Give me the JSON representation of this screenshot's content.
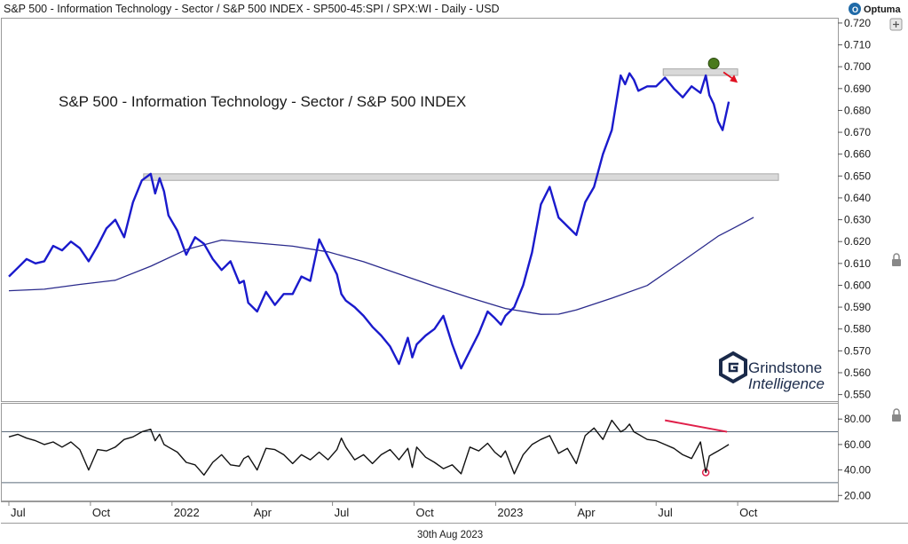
{
  "header": {
    "title": "S&P 500 - Information Technology - Sector / S&P 500 INDEX - SP500-45:SPI / SPX:WI - Daily - USD",
    "brand": "Optuma"
  },
  "watermark": {
    "line1": "Grindstone",
    "line2": "Intelligence"
  },
  "footer": {
    "date": "30th Aug 2023"
  },
  "colors": {
    "price": "#1a1acc",
    "ma": "#2a2a8c",
    "rsi": "#111111",
    "resistance": "#d9d9d9",
    "marker": "#4a7a1c",
    "arrow": "#e01020",
    "divergence": "#e0204a"
  },
  "chart_data": [
    {
      "type": "line",
      "title": "S&P 500 - Information Technology - Sector / S&P 500 INDEX",
      "xlabel": "",
      "ylabel": "",
      "ylim": [
        0.547,
        0.722
      ],
      "y_ticks": [
        "0.720",
        "0.710",
        "0.700",
        "0.690",
        "0.680",
        "0.670",
        "0.660",
        "0.650",
        "0.640",
        "0.630",
        "0.620",
        "0.610",
        "0.600",
        "0.590",
        "0.580",
        "0.570",
        "0.560",
        "0.550"
      ],
      "x_tick_labels": [
        "Jul",
        "Oct",
        "2022",
        "Apr",
        "Jul",
        "Oct",
        "2023",
        "Apr",
        "Jul",
        "Oct"
      ],
      "x_tick_positions": [
        0,
        92,
        184,
        274,
        365,
        457,
        549,
        639,
        730,
        822
      ],
      "x_range": [
        -8,
        935
      ],
      "series": [
        {
          "name": "Ratio",
          "x": [
            0,
            10,
            20,
            30,
            40,
            50,
            60,
            70,
            80,
            90,
            100,
            110,
            120,
            130,
            140,
            150,
            160,
            165,
            170,
            175,
            180,
            190,
            200,
            210,
            220,
            230,
            240,
            250,
            260,
            265,
            270,
            280,
            290,
            300,
            310,
            320,
            330,
            340,
            350,
            360,
            370,
            375,
            380,
            390,
            400,
            410,
            420,
            430,
            440,
            450,
            455,
            460,
            470,
            480,
            490,
            500,
            510,
            520,
            530,
            540,
            548,
            555,
            560,
            570,
            580,
            590,
            600,
            610,
            620,
            630,
            640,
            650,
            660,
            670,
            680,
            690,
            695,
            700,
            705,
            710,
            715,
            720,
            730,
            740,
            750,
            760,
            770,
            780,
            786,
            790,
            795,
            800,
            805,
            812
          ],
          "values": [
            0.604,
            0.608,
            0.612,
            0.61,
            0.611,
            0.618,
            0.616,
            0.62,
            0.617,
            0.611,
            0.618,
            0.626,
            0.63,
            0.622,
            0.638,
            0.648,
            0.651,
            0.642,
            0.649,
            0.643,
            0.632,
            0.625,
            0.614,
            0.622,
            0.619,
            0.612,
            0.607,
            0.611,
            0.601,
            0.602,
            0.592,
            0.588,
            0.597,
            0.591,
            0.596,
            0.596,
            0.604,
            0.602,
            0.621,
            0.613,
            0.605,
            0.596,
            0.593,
            0.59,
            0.586,
            0.581,
            0.577,
            0.572,
            0.564,
            0.576,
            0.567,
            0.573,
            0.577,
            0.58,
            0.586,
            0.573,
            0.562,
            0.57,
            0.578,
            0.588,
            0.585,
            0.582,
            0.586,
            0.59,
            0.6,
            0.615,
            0.637,
            0.645,
            0.631,
            0.627,
            0.623,
            0.638,
            0.645,
            0.66,
            0.671,
            0.696,
            0.692,
            0.697,
            0.694,
            0.689,
            0.69,
            0.691,
            0.691,
            0.695,
            0.69,
            0.686,
            0.691,
            0.688,
            0.696,
            0.687,
            0.683,
            0.675,
            0.671,
            0.684
          ]
        },
        {
          "name": "Moving Average",
          "x": [
            0,
            40,
            80,
            120,
            160,
            200,
            240,
            280,
            320,
            360,
            400,
            440,
            480,
            520,
            560,
            600,
            620,
            640,
            680,
            720,
            760,
            800,
            820,
            840
          ],
          "values": [
            0.5975,
            0.5982,
            0.6004,
            0.6023,
            0.6087,
            0.6163,
            0.6207,
            0.6193,
            0.6179,
            0.6153,
            0.6108,
            0.6052,
            0.5996,
            0.5943,
            0.5894,
            0.5867,
            0.5868,
            0.5887,
            0.5941,
            0.5999,
            0.6111,
            0.6225,
            0.6267,
            0.6311
          ]
        }
      ],
      "annotations": [
        "resistance band near 0.696–0.699",
        "resistance band near 0.648–0.651",
        "peak marker",
        "down arrow"
      ]
    },
    {
      "type": "line",
      "title": "",
      "ylim": [
        16,
        92
      ],
      "y_ticks": [
        "80.00",
        "60.00",
        "40.00",
        "20.00"
      ],
      "reference_lines": [
        70,
        30
      ],
      "series": [
        {
          "name": "RSI",
          "x": [
            0,
            10,
            20,
            30,
            40,
            50,
            60,
            70,
            80,
            90,
            100,
            110,
            120,
            130,
            140,
            150,
            160,
            165,
            170,
            175,
            180,
            190,
            200,
            210,
            220,
            230,
            240,
            250,
            260,
            265,
            270,
            280,
            290,
            300,
            310,
            320,
            330,
            340,
            350,
            360,
            370,
            375,
            380,
            390,
            400,
            410,
            420,
            430,
            440,
            450,
            455,
            460,
            470,
            480,
            490,
            500,
            510,
            520,
            530,
            540,
            548,
            555,
            560,
            570,
            580,
            590,
            600,
            610,
            620,
            630,
            640,
            650,
            660,
            670,
            680,
            690,
            695,
            700,
            705,
            710,
            715,
            720,
            730,
            740,
            750,
            760,
            770,
            780,
            786,
            790,
            795,
            800,
            805,
            812
          ],
          "values": [
            66,
            68,
            65,
            63,
            60,
            62,
            58,
            62,
            56,
            40,
            56,
            55,
            58,
            64,
            66,
            70,
            72,
            63,
            68,
            60,
            58,
            54,
            46,
            44,
            36,
            46,
            52,
            44,
            43,
            49,
            51,
            40,
            57,
            56,
            52,
            45,
            52,
            48,
            54,
            48,
            56,
            65,
            58,
            48,
            52,
            45,
            52,
            56,
            48,
            57,
            42,
            58,
            50,
            46,
            41,
            44,
            37,
            58,
            55,
            61,
            54,
            50,
            55,
            37,
            52,
            60,
            64,
            67,
            53,
            57,
            45,
            67,
            73,
            64,
            79,
            70,
            72,
            76,
            70,
            68,
            66,
            64,
            63,
            60,
            57,
            52,
            49,
            62,
            38,
            51,
            53,
            55,
            57,
            60
          ]
        }
      ],
      "annotations": [
        "divergence trendline",
        "oversold marker"
      ]
    }
  ]
}
